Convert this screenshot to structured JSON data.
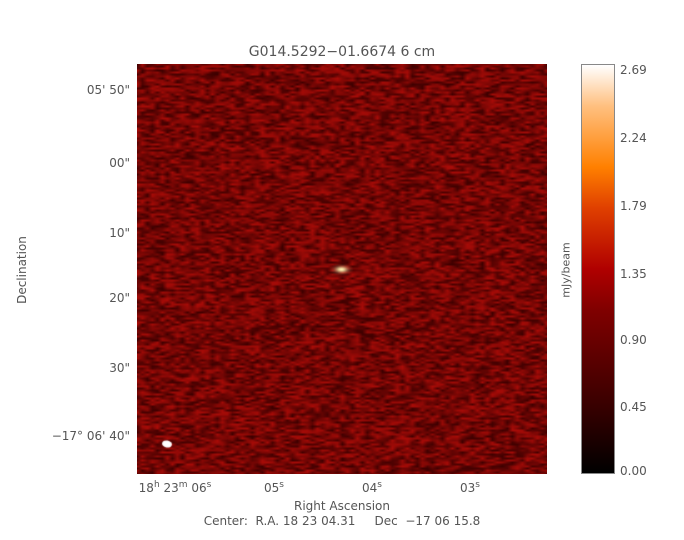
{
  "chart_data": {
    "type": "heatmap",
    "title": "G014.5292−01.6674 6 cm",
    "xlabel": "Right Ascension",
    "ylabel": "Declination",
    "x_ticks": [
      {
        "pre": "18",
        "h": "h",
        "m_pre": " 23",
        "m": "m",
        "s_pre": " 06",
        "s": "s"
      },
      {
        "s_pre": "05",
        "s": "s"
      },
      {
        "s_pre": "04",
        "s": "s"
      },
      {
        "s_pre": "03",
        "s": "s"
      }
    ],
    "y_ticks": [
      "05' 50\"",
      "00\"",
      "10\"",
      "20\"",
      "30\"",
      "−17° 06' 40\""
    ],
    "y_tick_first_label": "05' 50\"",
    "y_tick_last": {
      "deg": "−17",
      "o": "o",
      "rest": " 06' 40\""
    },
    "colorbar": {
      "label": "mJy/beam",
      "ticks": [
        "2.69",
        "2.24",
        "1.79",
        "1.35",
        "0.90",
        "0.45",
        "0.00"
      ],
      "range": [
        0,
        2.69
      ],
      "colormap": "red-orange-white heat"
    },
    "center_text": "Center:  R.A. 18 23 04.31     Dec  −17 06 15.8",
    "sources": [
      {
        "label": "compact source",
        "peak_mjy_beam": 2.69
      }
    ],
    "beam": "white ellipse lower-left"
  }
}
